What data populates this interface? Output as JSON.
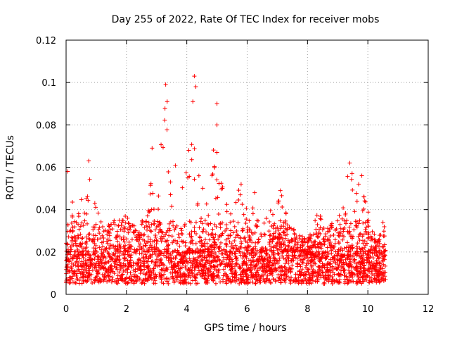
{
  "chart_data": {
    "type": "scatter",
    "title": "Day 255 of 2022, Rate Of TEC Index for receiver mobs",
    "xlabel": "GPS time / hours",
    "ylabel": "ROTI / TECUs",
    "xlim": [
      0,
      12
    ],
    "ylim": [
      0,
      0.12
    ],
    "x_ticks": [
      "0",
      "2",
      "4",
      "6",
      "8",
      "10",
      "12"
    ],
    "y_ticks": [
      "0",
      "0.02",
      "0.04",
      "0.06",
      "0.08",
      "0.1",
      "0.12"
    ],
    "grid": true,
    "marker": "plus",
    "color": "#ff0000",
    "x_extent": [
      0,
      10.6
    ],
    "baseline_range": [
      0.005,
      0.02
    ],
    "activity_envelope": [
      [
        0.0,
        0.028
      ],
      [
        0.1,
        0.058
      ],
      [
        0.3,
        0.035
      ],
      [
        0.5,
        0.045
      ],
      [
        0.7,
        0.062
      ],
      [
        0.9,
        0.045
      ],
      [
        1.2,
        0.035
      ],
      [
        1.5,
        0.033
      ],
      [
        1.8,
        0.04
      ],
      [
        2.1,
        0.035
      ],
      [
        2.4,
        0.03
      ],
      [
        2.7,
        0.045
      ],
      [
        2.85,
        0.069
      ],
      [
        3.0,
        0.048
      ],
      [
        3.3,
        0.099
      ],
      [
        3.5,
        0.07
      ],
      [
        3.8,
        0.05
      ],
      [
        4.0,
        0.06
      ],
      [
        4.2,
        0.091
      ],
      [
        4.3,
        0.103
      ],
      [
        4.45,
        0.06
      ],
      [
        4.7,
        0.045
      ],
      [
        5.0,
        0.09
      ],
      [
        5.2,
        0.05
      ],
      [
        5.6,
        0.045
      ],
      [
        5.8,
        0.052
      ],
      [
        6.0,
        0.04
      ],
      [
        6.3,
        0.048
      ],
      [
        6.6,
        0.035
      ],
      [
        7.1,
        0.049
      ],
      [
        7.4,
        0.033
      ],
      [
        7.7,
        0.03
      ],
      [
        8.0,
        0.025
      ],
      [
        8.3,
        0.042
      ],
      [
        8.6,
        0.03
      ],
      [
        9.0,
        0.038
      ],
      [
        9.2,
        0.045
      ],
      [
        9.4,
        0.063
      ],
      [
        9.6,
        0.05
      ],
      [
        9.8,
        0.056
      ],
      [
        10.0,
        0.04
      ],
      [
        10.3,
        0.025
      ],
      [
        10.6,
        0.035
      ]
    ],
    "notable_points": [
      [
        0.05,
        0.058
      ],
      [
        0.75,
        0.063
      ],
      [
        2.85,
        0.069
      ],
      [
        3.3,
        0.099
      ],
      [
        3.35,
        0.091
      ],
      [
        4.25,
        0.103
      ],
      [
        4.3,
        0.098
      ],
      [
        4.2,
        0.091
      ],
      [
        5.0,
        0.09
      ],
      [
        5.0,
        0.08
      ],
      [
        5.0,
        0.067
      ],
      [
        9.4,
        0.062
      ],
      [
        9.8,
        0.056
      ],
      [
        7.1,
        0.049
      ],
      [
        6.25,
        0.048
      ],
      [
        5.8,
        0.052
      ],
      [
        10.5,
        0.034
      ]
    ]
  }
}
